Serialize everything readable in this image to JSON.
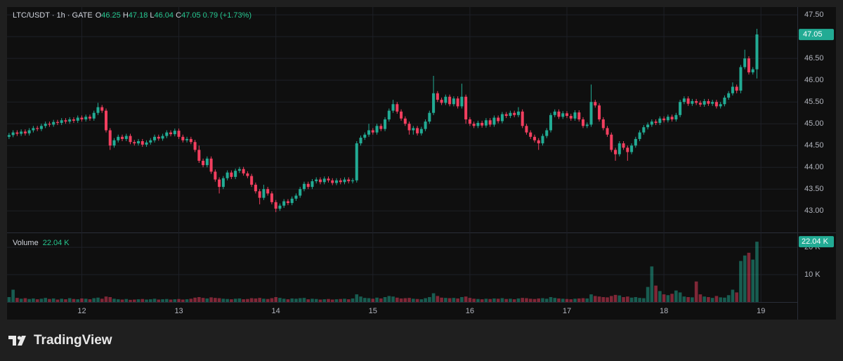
{
  "header": {
    "symbol": "LTC/USDT · 1h · GATE",
    "o": "O",
    "h": "H",
    "l": "L",
    "c": "C",
    "change": "0.79 (+1.73%)",
    "volume_title": "Volume"
  },
  "brand": "TradingView",
  "chart_data": {
    "type": "candlestick",
    "up_color": "#22ab94",
    "down_color": "#f23f5f",
    "xlim": [
      -0.5,
      195
    ],
    "xticks": [
      {
        "value": 18,
        "label": "12"
      },
      {
        "value": 42,
        "label": "13"
      },
      {
        "value": 66,
        "label": "14"
      },
      {
        "value": 90,
        "label": "15"
      },
      {
        "value": 114,
        "label": "16"
      },
      {
        "value": 138,
        "label": "17"
      },
      {
        "value": 162,
        "label": "18"
      },
      {
        "value": 186,
        "label": "19"
      }
    ],
    "ylim": [
      42.52,
      47.68
    ],
    "yticks": [
      {
        "value": 43,
        "label": "43.00"
      },
      {
        "value": 43.5,
        "label": "43.50"
      },
      {
        "value": 44,
        "label": "44.00"
      },
      {
        "value": 44.5,
        "label": "44.50"
      },
      {
        "value": 45,
        "label": "45.00"
      },
      {
        "value": 45.5,
        "label": "45.50"
      },
      {
        "value": 46,
        "label": "46.00"
      },
      {
        "value": 46.5,
        "label": "46.50"
      },
      {
        "value": 47,
        "label": "47.00"
      },
      {
        "value": 47.5,
        "label": "47.50"
      }
    ],
    "vlim": [
      0,
      24900
    ],
    "vticks": [
      {
        "value": 10000,
        "label": "10 K"
      },
      {
        "value": 20000,
        "label": "20 K"
      }
    ],
    "volume_label": "22.04 K",
    "grid": true,
    "open": [
      44.7,
      44.74,
      44.8,
      44.77,
      44.82,
      44.78,
      44.85,
      44.9,
      44.88,
      44.95,
      45.0,
      44.98,
      45.04,
      45.02,
      45.08,
      45.05,
      45.1,
      45.07,
      45.14,
      45.1,
      45.16,
      45.12,
      45.25,
      45.38,
      45.3,
      44.85,
      44.5,
      44.62,
      44.7,
      44.65,
      44.72,
      44.58,
      44.55,
      44.6,
      44.52,
      44.57,
      44.62,
      44.7,
      44.66,
      44.72,
      44.8,
      44.76,
      44.84,
      44.7,
      44.62,
      44.65,
      44.58,
      44.4,
      44.15,
      44.05,
      44.2,
      43.9,
      43.72,
      43.55,
      43.75,
      43.88,
      43.78,
      43.92,
      43.96,
      43.86,
      43.8,
      43.6,
      43.45,
      43.3,
      43.5,
      43.4,
      43.2,
      43.05,
      43.12,
      43.22,
      43.18,
      43.28,
      43.35,
      43.5,
      43.62,
      43.55,
      43.68,
      43.72,
      43.66,
      43.74,
      43.7,
      43.64,
      43.7,
      43.66,
      43.72,
      43.68,
      43.7,
      44.55,
      44.68,
      44.75,
      44.85,
      44.8,
      44.95,
      44.88,
      45.1,
      45.3,
      45.45,
      45.28,
      45.12,
      45.0,
      44.85,
      44.9,
      44.78,
      44.88,
      45.05,
      45.25,
      45.7,
      45.55,
      45.48,
      45.62,
      45.45,
      45.58,
      45.4,
      45.62,
      45.1,
      45.0,
      44.95,
      45.02,
      44.96,
      45.08,
      44.98,
      45.14,
      45.06,
      45.22,
      45.18,
      45.25,
      45.2,
      45.28,
      44.95,
      44.8,
      44.7,
      44.62,
      44.55,
      44.72,
      44.85,
      45.2,
      45.28,
      45.16,
      45.24,
      45.18,
      45.12,
      45.26,
      45.1,
      44.95,
      44.98,
      45.5,
      45.42,
      45.1,
      44.9,
      44.75,
      44.4,
      44.3,
      44.55,
      44.45,
      44.35,
      44.5,
      44.65,
      44.8,
      44.92,
      44.98,
      45.05,
      45.02,
      45.12,
      45.08,
      45.16,
      45.1,
      45.2,
      45.5,
      45.58,
      45.46,
      45.52,
      45.48,
      45.44,
      45.52,
      45.46,
      45.5,
      45.4,
      45.45,
      45.6,
      45.7,
      45.85,
      45.76,
      46.3,
      46.5,
      46.18,
      46.25
    ],
    "high": [
      44.79,
      44.85,
      44.85,
      44.87,
      44.87,
      44.9,
      44.95,
      44.95,
      45.0,
      45.05,
      45.05,
      45.09,
      45.09,
      45.13,
      45.13,
      45.15,
      45.15,
      45.19,
      45.19,
      45.21,
      45.21,
      45.3,
      45.48,
      45.43,
      45.35,
      44.9,
      44.67,
      44.75,
      44.75,
      44.77,
      44.77,
      44.63,
      44.65,
      44.65,
      44.62,
      44.67,
      44.75,
      44.75,
      44.77,
      44.85,
      44.85,
      44.89,
      44.89,
      44.75,
      44.7,
      44.7,
      44.63,
      44.5,
      44.2,
      44.25,
      44.25,
      43.95,
      43.77,
      43.8,
      43.93,
      43.93,
      43.97,
      44.01,
      44.01,
      43.91,
      43.85,
      43.65,
      43.5,
      43.6,
      43.55,
      43.45,
      43.25,
      43.17,
      43.27,
      43.27,
      43.33,
      43.4,
      43.55,
      43.67,
      43.67,
      43.73,
      43.77,
      43.77,
      43.79,
      43.79,
      43.75,
      43.75,
      43.75,
      43.77,
      43.77,
      43.75,
      44.6,
      44.73,
      44.8,
      45.0,
      44.9,
      45.0,
      45.0,
      45.15,
      45.35,
      45.55,
      45.5,
      45.33,
      45.17,
      45.05,
      44.95,
      44.95,
      44.93,
      45.1,
      45.3,
      46.1,
      45.75,
      45.6,
      45.67,
      45.67,
      45.63,
      45.63,
      45.92,
      45.67,
      45.15,
      45.05,
      45.07,
      45.07,
      45.13,
      45.13,
      45.19,
      45.19,
      45.27,
      45.27,
      45.3,
      45.3,
      45.38,
      45.33,
      45.0,
      44.85,
      44.75,
      44.67,
      44.77,
      44.9,
      45.25,
      45.33,
      45.33,
      45.29,
      45.29,
      45.23,
      45.31,
      45.31,
      45.15,
      45.03,
      45.9,
      45.55,
      45.47,
      45.15,
      44.95,
      44.8,
      44.45,
      44.6,
      44.6,
      44.5,
      44.55,
      44.7,
      44.85,
      44.97,
      45.03,
      45.1,
      45.1,
      45.17,
      45.17,
      45.21,
      45.21,
      45.25,
      45.55,
      45.63,
      45.63,
      45.57,
      45.57,
      45.53,
      45.57,
      45.57,
      45.55,
      45.55,
      45.5,
      45.65,
      45.75,
      45.95,
      45.9,
      46.35,
      46.7,
      46.55,
      46.3,
      47.18
    ],
    "low": [
      44.65,
      44.69,
      44.72,
      44.72,
      44.73,
      44.73,
      44.8,
      44.83,
      44.83,
      44.9,
      44.93,
      44.93,
      44.97,
      44.97,
      45.0,
      45.0,
      45.02,
      45.02,
      45.05,
      45.05,
      45.07,
      45.07,
      45.2,
      45.25,
      44.8,
      44.4,
      44.45,
      44.57,
      44.6,
      44.6,
      44.53,
      44.5,
      44.5,
      44.47,
      44.47,
      44.52,
      44.57,
      44.61,
      44.61,
      44.67,
      44.71,
      44.71,
      44.65,
      44.57,
      44.57,
      44.53,
      44.35,
      44.1,
      44.0,
      44.0,
      43.85,
      43.67,
      43.4,
      43.5,
      43.7,
      43.73,
      43.73,
      43.87,
      43.81,
      43.75,
      43.55,
      43.4,
      43.15,
      43.25,
      43.35,
      43.15,
      42.97,
      43.0,
      43.07,
      43.13,
      43.13,
      43.23,
      43.3,
      43.45,
      43.5,
      43.5,
      43.63,
      43.61,
      43.61,
      43.65,
      43.59,
      43.59,
      43.61,
      43.61,
      43.63,
      43.63,
      43.65,
      44.5,
      44.63,
      44.7,
      44.75,
      44.75,
      44.83,
      44.83,
      45.05,
      45.25,
      45.23,
      45.07,
      44.95,
      44.75,
      44.75,
      44.73,
      44.73,
      44.83,
      45.0,
      45.2,
      45.5,
      45.43,
      45.43,
      45.4,
      45.4,
      45.35,
      45.35,
      45.0,
      44.95,
      44.9,
      44.9,
      44.91,
      44.91,
      44.93,
      44.93,
      45.01,
      45.01,
      45.13,
      45.13,
      45.15,
      45.15,
      44.9,
      44.75,
      44.65,
      44.57,
      44.4,
      44.5,
      44.67,
      44.8,
      45.15,
      45.11,
      45.11,
      45.13,
      45.07,
      45.07,
      45.05,
      44.9,
      44.9,
      44.93,
      45.37,
      45.05,
      44.85,
      44.7,
      44.35,
      44.15,
      44.25,
      44.4,
      44.15,
      44.3,
      44.45,
      44.6,
      44.75,
      44.87,
      44.93,
      44.97,
      44.97,
      45.03,
      45.03,
      45.05,
      45.05,
      45.15,
      45.45,
      45.41,
      45.41,
      45.43,
      45.39,
      45.39,
      45.41,
      45.41,
      45.35,
      45.35,
      45.4,
      45.55,
      45.65,
      45.7,
      45.7,
      46.25,
      46.13,
      46.13,
      46.04
    ],
    "close": [
      44.74,
      44.8,
      44.77,
      44.82,
      44.78,
      44.85,
      44.9,
      44.88,
      44.95,
      45.0,
      44.98,
      45.04,
      45.02,
      45.08,
      45.05,
      45.1,
      45.07,
      45.14,
      45.1,
      45.16,
      45.12,
      45.25,
      45.38,
      45.3,
      44.85,
      44.5,
      44.62,
      44.7,
      44.65,
      44.72,
      44.58,
      44.55,
      44.6,
      44.52,
      44.57,
      44.62,
      44.7,
      44.66,
      44.72,
      44.8,
      44.76,
      44.84,
      44.7,
      44.62,
      44.65,
      44.58,
      44.4,
      44.15,
      44.05,
      44.2,
      43.9,
      43.72,
      43.55,
      43.75,
      43.88,
      43.78,
      43.92,
      43.96,
      43.86,
      43.8,
      43.6,
      43.45,
      43.3,
      43.5,
      43.4,
      43.2,
      43.05,
      43.12,
      43.22,
      43.18,
      43.28,
      43.35,
      43.5,
      43.62,
      43.55,
      43.68,
      43.72,
      43.66,
      43.74,
      43.7,
      43.64,
      43.7,
      43.66,
      43.72,
      43.68,
      43.7,
      44.55,
      44.68,
      44.75,
      44.85,
      44.8,
      44.95,
      44.88,
      45.1,
      45.3,
      45.45,
      45.28,
      45.12,
      45.0,
      44.85,
      44.9,
      44.78,
      44.88,
      45.05,
      45.25,
      45.7,
      45.55,
      45.48,
      45.62,
      45.45,
      45.58,
      45.4,
      45.62,
      45.1,
      45.0,
      44.95,
      45.02,
      44.96,
      45.08,
      44.98,
      45.14,
      45.06,
      45.22,
      45.18,
      45.25,
      45.2,
      45.28,
      44.95,
      44.8,
      44.7,
      44.62,
      44.55,
      44.72,
      44.85,
      45.2,
      45.28,
      45.16,
      45.24,
      45.18,
      45.12,
      45.26,
      45.1,
      44.95,
      44.98,
      45.5,
      45.42,
      45.1,
      44.9,
      44.75,
      44.4,
      44.3,
      44.55,
      44.45,
      44.35,
      44.5,
      44.65,
      44.8,
      44.92,
      44.98,
      45.05,
      45.02,
      45.12,
      45.08,
      45.16,
      45.1,
      45.2,
      45.5,
      45.58,
      45.46,
      45.52,
      45.48,
      45.44,
      45.52,
      45.46,
      45.5,
      45.4,
      45.45,
      45.6,
      45.7,
      45.85,
      45.76,
      46.3,
      46.5,
      46.18,
      46.25,
      47.05
    ],
    "volume": [
      1800,
      4500,
      1500,
      1200,
      1400,
      1100,
      1300,
      1000,
      1200,
      1500,
      1100,
      1300,
      900,
      1200,
      1000,
      1400,
      1100,
      1000,
      1300,
      1200,
      1000,
      1400,
      1600,
      1200,
      2000,
      1800,
      1200,
      1000,
      900,
      1100,
      800,
      900,
      1000,
      1100,
      900,
      1000,
      1200,
      900,
      1000,
      1100,
      900,
      1000,
      1100,
      900,
      1000,
      1200,
      1600,
      1800,
      1500,
      1300,
      1700,
      1500,
      1400,
      1200,
      1100,
      1000,
      1200,
      1300,
      1000,
      1100,
      1400,
      1300,
      1500,
      1200,
      1100,
      1400,
      1800,
      1500,
      1200,
      1000,
      1300,
      1200,
      1400,
      1500,
      1000,
      1200,
      1100,
      900,
      1000,
      1100,
      900,
      1000,
      1100,
      1200,
      1000,
      1300,
      2800,
      2000,
      1500,
      1400,
      1200,
      1600,
      1300,
      1800,
      2200,
      2000,
      1600,
      1300,
      1400,
      1500,
      1200,
      1100,
      1000,
      1400,
      1800,
      3200,
      2200,
      1600,
      1500,
      1400,
      1500,
      1300,
      1800,
      2000,
      1500,
      1200,
      1100,
      1000,
      1200,
      1100,
      1300,
      1200,
      1400,
      1100,
      1200,
      1000,
      1300,
      1500,
      1400,
      1200,
      1100,
      1300,
      1400,
      1200,
      1800,
      1500,
      1300,
      1200,
      1100,
      1000,
      1200,
      1300,
      1400,
      1300,
      2800,
      2200,
      2000,
      1800,
      1700,
      2200,
      2600,
      2400,
      1800,
      2000,
      1600,
      1800,
      1500,
      1400,
      5500,
      13000,
      6000,
      4000,
      2800,
      2500,
      3000,
      4200,
      3500,
      2000,
      1800,
      1700,
      7500,
      2800,
      2000,
      1800,
      1500,
      2200,
      1700,
      1600,
      2500,
      4500,
      3500,
      15000,
      17000,
      18000,
      15500,
      22040
    ]
  }
}
